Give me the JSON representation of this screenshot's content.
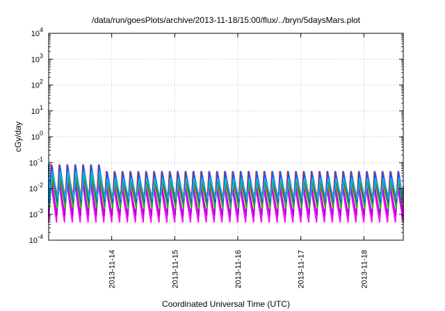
{
  "chart_data": {
    "type": "line",
    "title": "/data/run/goesPlots/archive/2013-11-18/15:00/flux/../bryn/5daysMars.plot",
    "xlabel": "Coordinated Universal Time (UTC)",
    "ylabel": "cGy/day",
    "y_scale": "log",
    "ylim": [
      0.0001,
      10000
    ],
    "y_ticks": [
      {
        "base": "10",
        "exp": "-4"
      },
      {
        "base": "10",
        "exp": "-3"
      },
      {
        "base": "10",
        "exp": "-2"
      },
      {
        "base": "10",
        "exp": "-1"
      },
      {
        "base": "10",
        "exp": "0"
      },
      {
        "base": "10",
        "exp": "1"
      },
      {
        "base": "10",
        "exp": "2"
      },
      {
        "base": "10",
        "exp": "3"
      },
      {
        "base": "10",
        "exp": "4"
      }
    ],
    "xlim": [
      "2013-11-13T00:00",
      "2013-11-18T15:00"
    ],
    "x_ticks": [
      "2013-11-14",
      "2013-11-15",
      "2013-11-16",
      "2013-11-17",
      "2013-11-18"
    ],
    "grid": true,
    "cycle_hours": 3,
    "series": [
      {
        "color": "#ff00ff",
        "peak": 0.012,
        "trough": 0.0005
      },
      {
        "color": "#b000d0",
        "peak": 0.015,
        "trough": 0.0009
      },
      {
        "color": "#ee1111",
        "peak": 0.045,
        "trough": 0.002
      },
      {
        "color": "#22aa22",
        "peak": 0.02,
        "trough": 0.0018
      },
      {
        "color": "#2255ee",
        "peak": 0.045,
        "trough": 0.003
      },
      {
        "color": "#00bbdd",
        "peak": 0.025,
        "trough": 0.004
      }
    ]
  }
}
